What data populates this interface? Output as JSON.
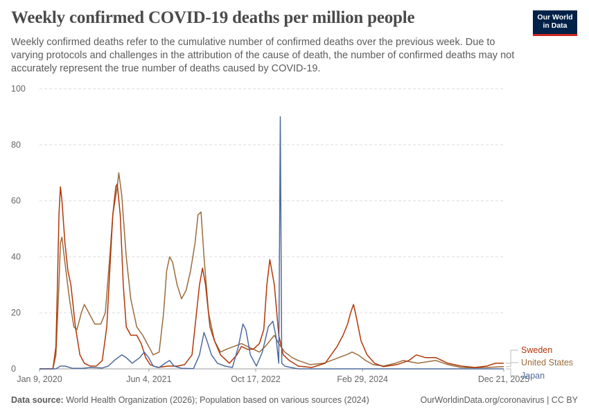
{
  "header": {
    "title": "Weekly confirmed COVID-19 deaths per million people",
    "subtitle": "Weekly confirmed deaths refer to the cumulative number of confirmed deaths over the previous week. Due to varying protocols and challenges in the attribution of the cause of death, the number of confirmed deaths may not accurately represent the true number of deaths caused by COVID-19."
  },
  "logo": {
    "line1": "Our World",
    "line2": "in Data",
    "bg": "#002147",
    "accent": "#ce261e"
  },
  "footer": {
    "source_label": "Data source:",
    "source_text": "World Health Organization (2026); Population based on various sources (2024)",
    "credit": "OurWorldinData.org/coronavirus | CC BY"
  },
  "chart_data": {
    "type": "line",
    "x_type": "date",
    "x_range": [
      "2020-01-09",
      "2025-12-21"
    ],
    "ylim": [
      0,
      100
    ],
    "y_ticks": [
      0,
      20,
      40,
      60,
      80,
      100
    ],
    "y_tick_labels": [
      "0",
      "20",
      "40",
      "60",
      "80",
      "100"
    ],
    "x_ticks": [
      "2020-01-09",
      "2021-06-04",
      "2022-10-17",
      "2024-02-29",
      "2025-12-21"
    ],
    "x_tick_labels": [
      "Jan 9, 2020",
      "Jun 4, 2021",
      "Oct 17, 2022",
      "Feb 29, 2024",
      "Dec 21, 2025"
    ],
    "grid": "horizontal dashed",
    "legend": "right, end of lines",
    "series": [
      {
        "name": "Sweden",
        "color": "#b13507",
        "points": [
          [
            "2020-01-09",
            0
          ],
          [
            "2020-03-12",
            0
          ],
          [
            "2020-03-26",
            8
          ],
          [
            "2020-04-02",
            30
          ],
          [
            "2020-04-09",
            55
          ],
          [
            "2020-04-16",
            65
          ],
          [
            "2020-04-23",
            60
          ],
          [
            "2020-05-07",
            45
          ],
          [
            "2020-05-21",
            35
          ],
          [
            "2020-06-04",
            30
          ],
          [
            "2020-06-25",
            15
          ],
          [
            "2020-07-16",
            5
          ],
          [
            "2020-08-06",
            2
          ],
          [
            "2020-09-03",
            1
          ],
          [
            "2020-10-01",
            1
          ],
          [
            "2020-10-29",
            3
          ],
          [
            "2020-11-19",
            15
          ],
          [
            "2020-12-03",
            35
          ],
          [
            "2020-12-17",
            55
          ],
          [
            "2020-12-31",
            65
          ],
          [
            "2021-01-07",
            66
          ],
          [
            "2021-01-21",
            55
          ],
          [
            "2021-02-04",
            30
          ],
          [
            "2021-02-18",
            15
          ],
          [
            "2021-03-11",
            12
          ],
          [
            "2021-04-08",
            12
          ],
          [
            "2021-04-29",
            9
          ],
          [
            "2021-05-20",
            4
          ],
          [
            "2021-06-10",
            1.5
          ],
          [
            "2021-07-15",
            0.5
          ],
          [
            "2021-09-02",
            1
          ],
          [
            "2021-10-14",
            1
          ],
          [
            "2021-11-18",
            1.5
          ],
          [
            "2021-12-23",
            5
          ],
          [
            "2022-01-13",
            20
          ],
          [
            "2022-01-27",
            30
          ],
          [
            "2022-02-10",
            36
          ],
          [
            "2022-02-24",
            30
          ],
          [
            "2022-03-17",
            15
          ],
          [
            "2022-04-07",
            10
          ],
          [
            "2022-05-05",
            5
          ],
          [
            "2022-06-16",
            2
          ],
          [
            "2022-07-21",
            5
          ],
          [
            "2022-08-11",
            8
          ],
          [
            "2022-09-08",
            7
          ],
          [
            "2022-10-06",
            7
          ],
          [
            "2022-11-03",
            9
          ],
          [
            "2022-11-24",
            14
          ],
          [
            "2022-12-08",
            30
          ],
          [
            "2022-12-22",
            39
          ],
          [
            "2023-01-12",
            30
          ],
          [
            "2023-02-02",
            12
          ],
          [
            "2023-02-23",
            5
          ],
          [
            "2023-03-23",
            3
          ],
          [
            "2023-05-04",
            1
          ],
          [
            "2023-07-06",
            0.5
          ],
          [
            "2023-09-07",
            2
          ],
          [
            "2023-10-05",
            5
          ],
          [
            "2023-11-02",
            8
          ],
          [
            "2023-11-30",
            12
          ],
          [
            "2023-12-21",
            16
          ],
          [
            "2024-01-04",
            20
          ],
          [
            "2024-01-18",
            23
          ],
          [
            "2024-02-01",
            18
          ],
          [
            "2024-02-22",
            10
          ],
          [
            "2024-03-21",
            5
          ],
          [
            "2024-04-25",
            2
          ],
          [
            "2024-06-06",
            0.8
          ],
          [
            "2024-08-08",
            1.5
          ],
          [
            "2024-10-03",
            3
          ],
          [
            "2024-11-07",
            5
          ],
          [
            "2024-12-19",
            4
          ],
          [
            "2025-02-06",
            4
          ],
          [
            "2025-04-03",
            2
          ],
          [
            "2025-06-05",
            1
          ],
          [
            "2025-08-07",
            0.5
          ],
          [
            "2025-10-02",
            1
          ],
          [
            "2025-11-13",
            2
          ],
          [
            "2025-12-21",
            2
          ]
        ]
      },
      {
        "name": "United States",
        "color": "#9a6b3a",
        "points": [
          [
            "2020-01-09",
            0
          ],
          [
            "2020-03-12",
            0
          ],
          [
            "2020-03-26",
            5
          ],
          [
            "2020-04-09",
            30
          ],
          [
            "2020-04-16",
            45
          ],
          [
            "2020-04-23",
            47
          ],
          [
            "2020-05-07",
            38
          ],
          [
            "2020-05-28",
            25
          ],
          [
            "2020-06-18",
            15
          ],
          [
            "2020-07-02",
            14
          ],
          [
            "2020-07-23",
            20
          ],
          [
            "2020-08-06",
            23
          ],
          [
            "2020-08-27",
            20
          ],
          [
            "2020-09-24",
            16
          ],
          [
            "2020-10-22",
            16
          ],
          [
            "2020-11-12",
            20
          ],
          [
            "2020-12-03",
            40
          ],
          [
            "2020-12-17",
            55
          ],
          [
            "2021-01-07",
            65
          ],
          [
            "2021-01-14",
            70
          ],
          [
            "2021-01-28",
            62
          ],
          [
            "2021-02-18",
            40
          ],
          [
            "2021-03-11",
            25
          ],
          [
            "2021-04-08",
            15
          ],
          [
            "2021-05-06",
            12
          ],
          [
            "2021-06-03",
            8
          ],
          [
            "2021-06-24",
            5
          ],
          [
            "2021-07-22",
            6
          ],
          [
            "2021-08-12",
            20
          ],
          [
            "2021-08-26",
            35
          ],
          [
            "2021-09-09",
            40
          ],
          [
            "2021-09-23",
            38
          ],
          [
            "2021-10-14",
            30
          ],
          [
            "2021-11-04",
            25
          ],
          [
            "2021-11-25",
            28
          ],
          [
            "2021-12-16",
            35
          ],
          [
            "2022-01-06",
            45
          ],
          [
            "2022-01-20",
            55
          ],
          [
            "2022-02-03",
            56
          ],
          [
            "2022-02-17",
            40
          ],
          [
            "2022-03-10",
            20
          ],
          [
            "2022-04-07",
            10
          ],
          [
            "2022-05-05",
            6
          ],
          [
            "2022-06-02",
            7
          ],
          [
            "2022-07-07",
            8
          ],
          [
            "2022-08-11",
            9
          ],
          [
            "2022-09-08",
            8
          ],
          [
            "2022-10-06",
            7
          ],
          [
            "2022-11-03",
            6
          ],
          [
            "2022-12-01",
            8
          ],
          [
            "2022-12-22",
            10
          ],
          [
            "2023-01-12",
            12
          ],
          [
            "2023-02-02",
            9
          ],
          [
            "2023-03-02",
            6
          ],
          [
            "2023-04-06",
            4
          ],
          [
            "2023-05-04",
            3
          ],
          [
            "2023-06-29",
            1.5
          ],
          [
            "2023-08-31",
            2
          ],
          [
            "2023-10-05",
            3
          ],
          [
            "2023-11-09",
            4
          ],
          [
            "2023-12-14",
            5
          ],
          [
            "2024-01-11",
            6
          ],
          [
            "2024-02-08",
            5
          ],
          [
            "2024-03-14",
            3
          ],
          [
            "2024-04-18",
            1.5
          ],
          [
            "2024-06-06",
            1
          ],
          [
            "2024-08-01",
            2
          ],
          [
            "2024-09-05",
            3
          ],
          [
            "2024-10-10",
            2.5
          ],
          [
            "2024-11-14",
            2
          ],
          [
            "2024-12-26",
            2.5
          ],
          [
            "2025-02-06",
            3
          ],
          [
            "2025-04-03",
            1.5
          ],
          [
            "2025-06-05",
            0.5
          ],
          [
            "2025-08-07",
            0.4
          ],
          [
            "2025-10-02",
            0.5
          ],
          [
            "2025-12-21",
            0.8
          ]
        ]
      },
      {
        "name": "Japan",
        "color": "#4c6a9c",
        "points": [
          [
            "2020-01-09",
            0
          ],
          [
            "2020-03-26",
            0
          ],
          [
            "2020-04-16",
            1
          ],
          [
            "2020-05-07",
            1
          ],
          [
            "2020-06-11",
            0.2
          ],
          [
            "2020-07-30",
            0.2
          ],
          [
            "2020-09-03",
            0.5
          ],
          [
            "2020-10-29",
            0.3
          ],
          [
            "2020-11-26",
            1
          ],
          [
            "2020-12-24",
            3
          ],
          [
            "2021-01-28",
            5
          ],
          [
            "2021-02-18",
            4
          ],
          [
            "2021-03-18",
            2
          ],
          [
            "2021-04-22",
            4
          ],
          [
            "2021-05-13",
            6
          ],
          [
            "2021-06-03",
            4
          ],
          [
            "2021-06-24",
            1
          ],
          [
            "2021-07-22",
            0.5
          ],
          [
            "2021-08-19",
            2
          ],
          [
            "2021-09-09",
            3
          ],
          [
            "2021-09-30",
            1
          ],
          [
            "2021-11-04",
            0.2
          ],
          [
            "2021-12-30",
            0.1
          ],
          [
            "2022-01-27",
            5
          ],
          [
            "2022-02-17",
            13
          ],
          [
            "2022-03-03",
            10
          ],
          [
            "2022-03-24",
            5
          ],
          [
            "2022-04-21",
            2
          ],
          [
            "2022-05-26",
            1
          ],
          [
            "2022-06-30",
            0.5
          ],
          [
            "2022-07-28",
            8
          ],
          [
            "2022-08-18",
            16
          ],
          [
            "2022-09-01",
            14
          ],
          [
            "2022-09-22",
            5
          ],
          [
            "2022-10-20",
            1
          ],
          [
            "2022-11-17",
            6
          ],
          [
            "2022-12-15",
            15
          ],
          [
            "2023-01-05",
            17
          ],
          [
            "2023-01-19",
            12
          ],
          [
            "2023-02-02",
            2
          ],
          [
            "2023-02-09",
            90
          ],
          [
            "2023-02-16",
            2
          ],
          [
            "2023-03-02",
            1
          ],
          [
            "2023-03-30",
            0.5
          ],
          [
            "2023-05-04",
            0
          ],
          [
            "2025-12-21",
            0
          ]
        ]
      }
    ]
  }
}
